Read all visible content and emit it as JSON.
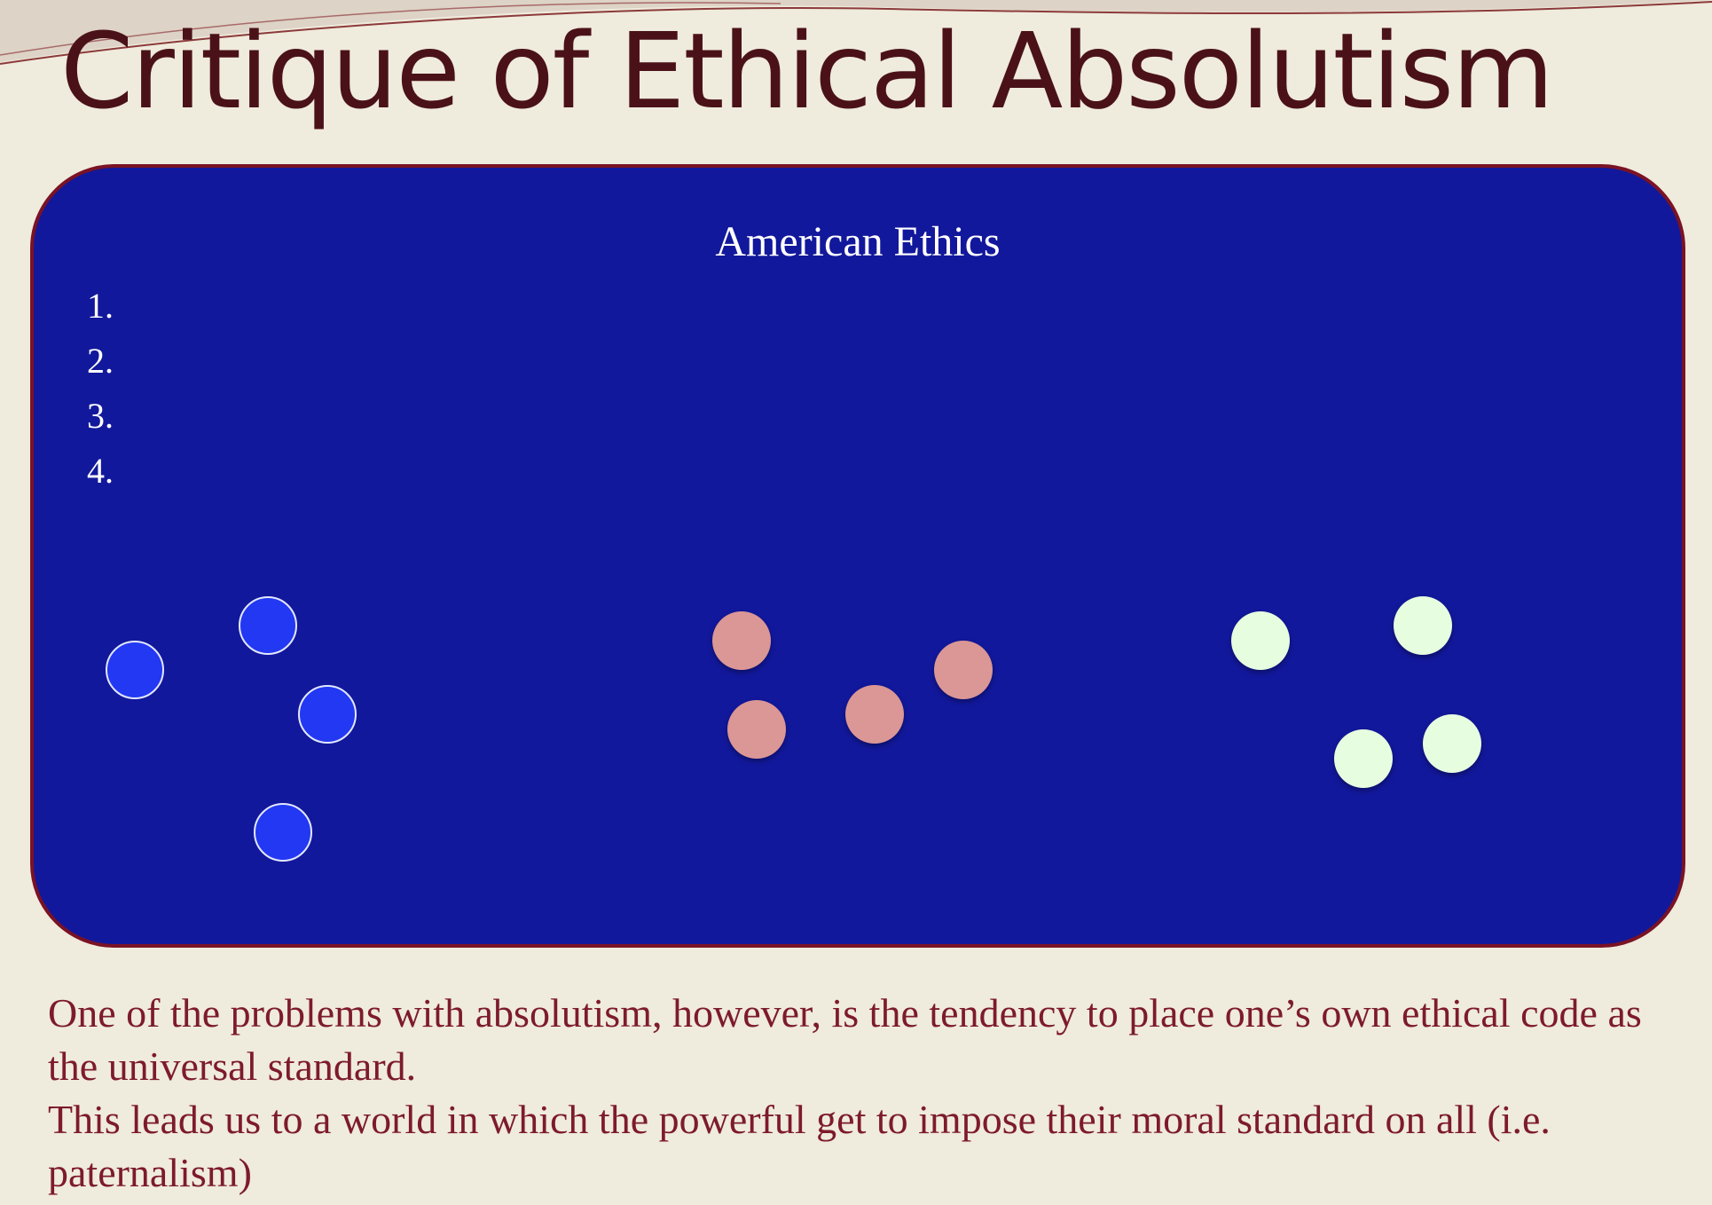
{
  "slide": {
    "title": "Critique of Ethical Absolutism"
  },
  "panel": {
    "title": "American Ethics",
    "list_items": [
      "1.",
      "2.",
      "3.",
      "4."
    ]
  },
  "colors": {
    "background": "#efebdd",
    "title": "#4a1218",
    "panel_fill": "#12189b",
    "panel_border": "#7a1224",
    "dot_blue": "#2338f2",
    "dot_pink": "#db9696",
    "dot_green": "#e6fde0",
    "body_text": "#7d1b2b"
  },
  "body": {
    "paragraph_1": "One of the problems with absolutism, however, is the tendency to place one’s own ethical code as the universal standard.",
    "paragraph_2": "This leads us to a world in which the powerful get to impose their moral standard on all (i.e. paternalism)"
  }
}
